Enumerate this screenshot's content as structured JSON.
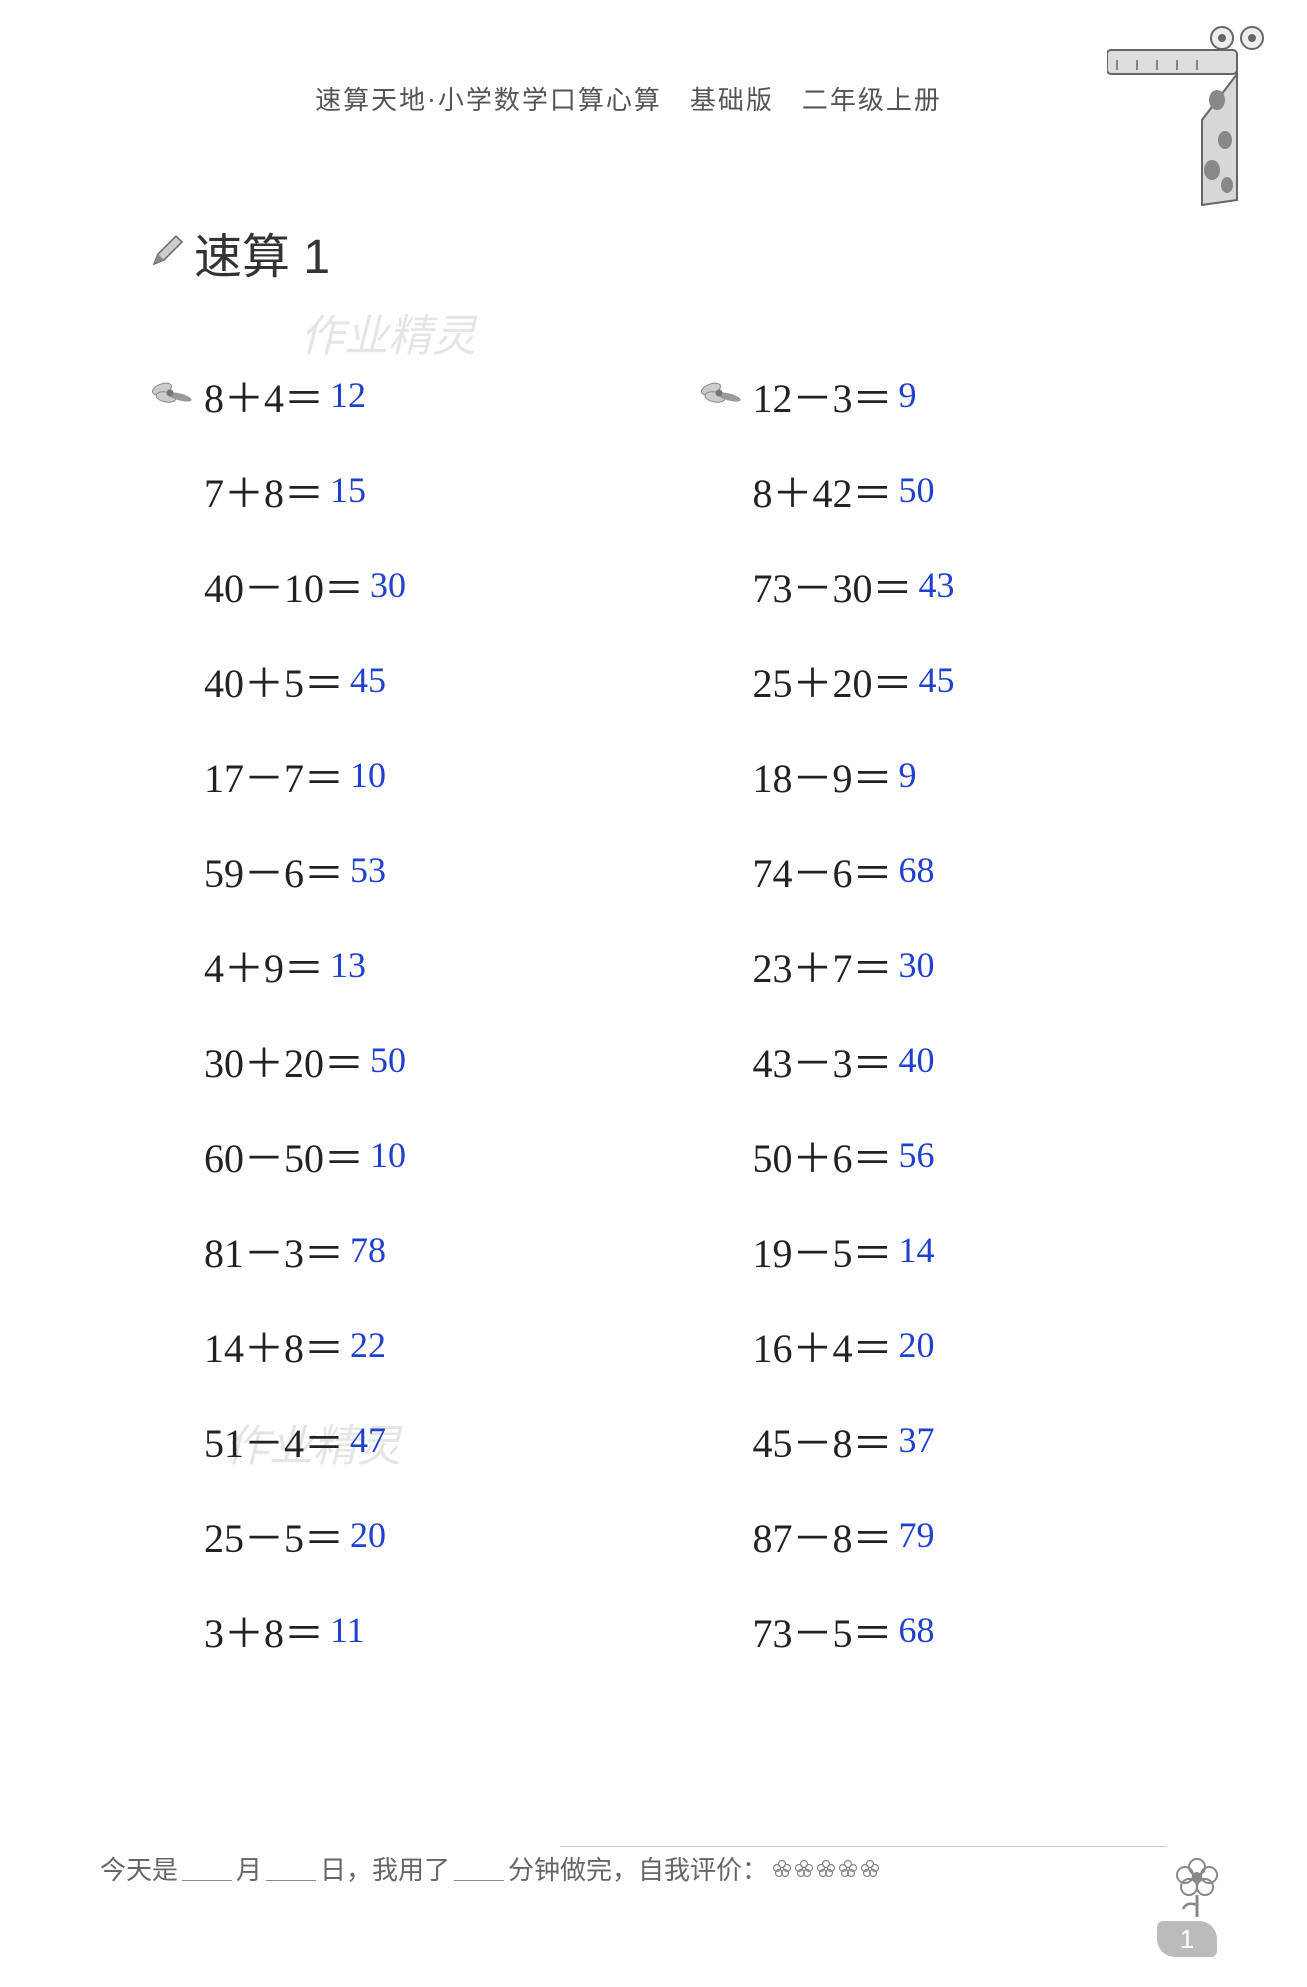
{
  "header": "速算天地·小学数学口算心算　基础版　二年级上册",
  "title": "速算 1",
  "watermark": "作业精灵",
  "colors": {
    "problem_text": "#222222",
    "answer_text": "#2040d0",
    "header_text": "#555555",
    "watermark_text": "#cccccc",
    "background": "#ffffff"
  },
  "fontsize": {
    "problem": 40,
    "answer": 36,
    "title": 48,
    "header": 26,
    "footer": 26
  },
  "left_column": [
    {
      "expr": "8＋4＝",
      "answer": "12",
      "has_icon": true
    },
    {
      "expr": "7＋8＝",
      "answer": "15"
    },
    {
      "expr": "40－10＝",
      "answer": "30"
    },
    {
      "expr": "40＋5＝",
      "answer": "45"
    },
    {
      "expr": "17－7＝",
      "answer": "10"
    },
    {
      "expr": "59－6＝",
      "answer": "53"
    },
    {
      "expr": "4＋9＝",
      "answer": "13"
    },
    {
      "expr": "30＋20＝",
      "answer": "50"
    },
    {
      "expr": "60－50＝",
      "answer": "10"
    },
    {
      "expr": "81－3＝",
      "answer": "78"
    },
    {
      "expr": "14＋8＝",
      "answer": "22"
    },
    {
      "expr": "51－4＝",
      "answer": "47"
    },
    {
      "expr": "25－5＝",
      "answer": "20"
    },
    {
      "expr": "3＋8＝",
      "answer": "11"
    }
  ],
  "right_column": [
    {
      "expr": "12－3＝",
      "answer": "9",
      "has_icon": true
    },
    {
      "expr": "8＋42＝",
      "answer": "50"
    },
    {
      "expr": "73－30＝",
      "answer": "43"
    },
    {
      "expr": "25＋20＝",
      "answer": "45"
    },
    {
      "expr": "18－9＝",
      "answer": "9"
    },
    {
      "expr": "74－6＝",
      "answer": "68"
    },
    {
      "expr": "23＋7＝",
      "answer": "30"
    },
    {
      "expr": "43－3＝",
      "answer": "40"
    },
    {
      "expr": "50＋6＝",
      "answer": "56"
    },
    {
      "expr": "19－5＝",
      "answer": "14"
    },
    {
      "expr": "16＋4＝",
      "answer": "20"
    },
    {
      "expr": "45－8＝",
      "answer": "37"
    },
    {
      "expr": "87－8＝",
      "answer": "79"
    },
    {
      "expr": "73－5＝",
      "answer": "68"
    }
  ],
  "footer": {
    "prefix": "今天是",
    "month": "月",
    "day": "日，我用了",
    "minutes": "分钟做完，自我评价：",
    "star_count": 5
  },
  "page_number": "1"
}
